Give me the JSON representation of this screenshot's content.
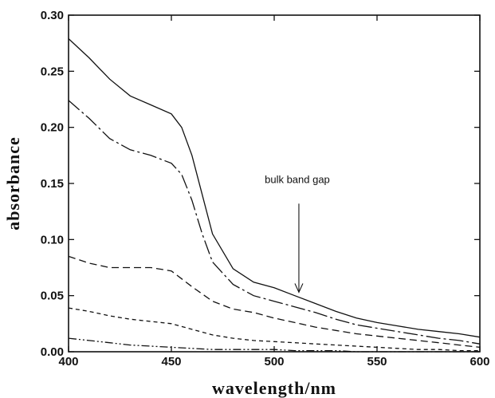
{
  "chart_data": {
    "type": "line",
    "xlabel": "wavelength/nm",
    "ylabel": "absorbance",
    "xlim": [
      400,
      600
    ],
    "ylim": [
      0.0,
      0.3
    ],
    "x_ticks": [
      {
        "value": 400,
        "label": "400"
      },
      {
        "value": 450,
        "label": "450"
      },
      {
        "value": 500,
        "label": "500"
      },
      {
        "value": 550,
        "label": "550"
      },
      {
        "value": 600,
        "label": "600"
      }
    ],
    "y_ticks": [
      {
        "value": 0.0,
        "label": "0.00"
      },
      {
        "value": 0.05,
        "label": "0.05"
      },
      {
        "value": 0.1,
        "label": "0.10"
      },
      {
        "value": 0.15,
        "label": "0.15"
      },
      {
        "value": 0.2,
        "label": "0.20"
      },
      {
        "value": 0.25,
        "label": "0.25"
      },
      {
        "value": 0.3,
        "label": "0.30"
      }
    ],
    "grid": false,
    "series": [
      {
        "dash": "solid",
        "color": "#111111",
        "points": [
          [
            400,
            0.279
          ],
          [
            410,
            0.262
          ],
          [
            420,
            0.243
          ],
          [
            430,
            0.228
          ],
          [
            440,
            0.22
          ],
          [
            450,
            0.212
          ],
          [
            455,
            0.2
          ],
          [
            460,
            0.175
          ],
          [
            465,
            0.14
          ],
          [
            470,
            0.105
          ],
          [
            480,
            0.074
          ],
          [
            490,
            0.062
          ],
          [
            500,
            0.057
          ],
          [
            510,
            0.05
          ],
          [
            520,
            0.043
          ],
          [
            530,
            0.036
          ],
          [
            540,
            0.03
          ],
          [
            550,
            0.026
          ],
          [
            560,
            0.023
          ],
          [
            570,
            0.02
          ],
          [
            580,
            0.018
          ],
          [
            590,
            0.016
          ],
          [
            600,
            0.013
          ]
        ]
      },
      {
        "dash": "dash-dot",
        "color": "#111111",
        "points": [
          [
            400,
            0.224
          ],
          [
            410,
            0.208
          ],
          [
            420,
            0.19
          ],
          [
            430,
            0.18
          ],
          [
            440,
            0.175
          ],
          [
            450,
            0.168
          ],
          [
            455,
            0.158
          ],
          [
            460,
            0.135
          ],
          [
            465,
            0.105
          ],
          [
            470,
            0.08
          ],
          [
            480,
            0.06
          ],
          [
            490,
            0.05
          ],
          [
            500,
            0.045
          ],
          [
            510,
            0.04
          ],
          [
            520,
            0.035
          ],
          [
            530,
            0.029
          ],
          [
            540,
            0.024
          ],
          [
            550,
            0.021
          ],
          [
            560,
            0.018
          ],
          [
            570,
            0.015
          ],
          [
            580,
            0.012
          ],
          [
            590,
            0.01
          ],
          [
            600,
            0.007
          ]
        ]
      },
      {
        "dash": "dashed",
        "color": "#111111",
        "points": [
          [
            400,
            0.085
          ],
          [
            410,
            0.079
          ],
          [
            420,
            0.075
          ],
          [
            430,
            0.075
          ],
          [
            440,
            0.075
          ],
          [
            450,
            0.072
          ],
          [
            460,
            0.058
          ],
          [
            470,
            0.045
          ],
          [
            480,
            0.038
          ],
          [
            490,
            0.035
          ],
          [
            500,
            0.03
          ],
          [
            510,
            0.026
          ],
          [
            520,
            0.022
          ],
          [
            530,
            0.019
          ],
          [
            540,
            0.016
          ],
          [
            550,
            0.014
          ],
          [
            560,
            0.012
          ],
          [
            570,
            0.01
          ],
          [
            580,
            0.008
          ],
          [
            590,
            0.006
          ],
          [
            600,
            0.004
          ]
        ]
      },
      {
        "dash": "short-dash",
        "color": "#111111",
        "points": [
          [
            400,
            0.039
          ],
          [
            410,
            0.036
          ],
          [
            420,
            0.032
          ],
          [
            430,
            0.029
          ],
          [
            440,
            0.027
          ],
          [
            450,
            0.025
          ],
          [
            460,
            0.02
          ],
          [
            470,
            0.015
          ],
          [
            480,
            0.012
          ],
          [
            490,
            0.01
          ],
          [
            500,
            0.009
          ],
          [
            510,
            0.008
          ],
          [
            520,
            0.007
          ],
          [
            530,
            0.006
          ],
          [
            540,
            0.005
          ],
          [
            550,
            0.004
          ],
          [
            560,
            0.003
          ],
          [
            570,
            0.002
          ],
          [
            580,
            0.002
          ],
          [
            590,
            0.001
          ],
          [
            600,
            0.001
          ]
        ]
      },
      {
        "dash": "dash-dot-dot",
        "color": "#111111",
        "points": [
          [
            400,
            0.012
          ],
          [
            410,
            0.01
          ],
          [
            420,
            0.008
          ],
          [
            430,
            0.006
          ],
          [
            440,
            0.005
          ],
          [
            450,
            0.004
          ],
          [
            460,
            0.003
          ],
          [
            470,
            0.002
          ],
          [
            480,
            0.002
          ],
          [
            490,
            0.002
          ],
          [
            500,
            0.002
          ],
          [
            510,
            0.001
          ],
          [
            520,
            0.001
          ],
          [
            530,
            0.001
          ],
          [
            540,
            0.0
          ],
          [
            550,
            0.0
          ],
          [
            560,
            0.0
          ],
          [
            570,
            0.0
          ],
          [
            580,
            0.0
          ],
          [
            590,
            0.0
          ],
          [
            600,
            0.0
          ]
        ]
      }
    ],
    "annotations": [
      {
        "text": "bulk band gap",
        "arrow_x": 512,
        "arrow_from_y": 0.132,
        "arrow_to_y": 0.053
      }
    ]
  }
}
